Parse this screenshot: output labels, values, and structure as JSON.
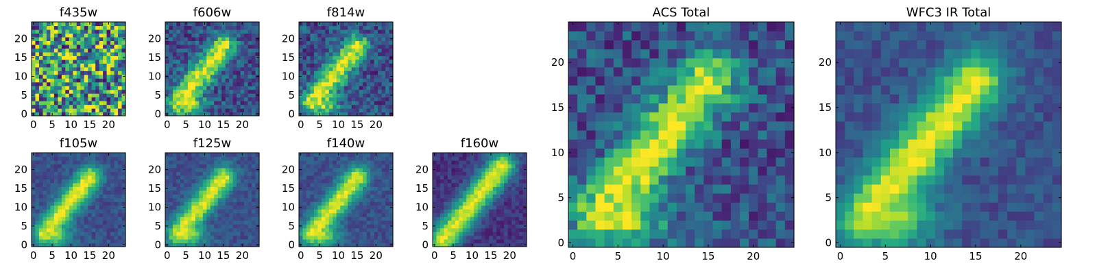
{
  "chart_data": [
    {
      "type": "heatmap",
      "title": "f435w",
      "xticks": [
        "0",
        "5",
        "10",
        "15",
        "20"
      ],
      "yticks": [
        "0",
        "5",
        "10",
        "15",
        "20"
      ],
      "xlim": [
        -0.5,
        24.5
      ],
      "ylim": [
        -0.5,
        24.5
      ],
      "grid": false,
      "colormap": "viridis",
      "structure": "noise"
    },
    {
      "type": "heatmap",
      "title": "f606w",
      "xticks": [
        "0",
        "5",
        "10",
        "15",
        "20"
      ],
      "yticks": [
        "0",
        "5",
        "10",
        "15",
        "20"
      ],
      "xlim": [
        -0.5,
        24.5
      ],
      "ylim": [
        -0.5,
        24.5
      ],
      "grid": false,
      "colormap": "viridis",
      "structure": "diagonal-arc"
    },
    {
      "type": "heatmap",
      "title": "f814w",
      "xticks": [
        "0",
        "5",
        "10",
        "15",
        "20"
      ],
      "yticks": [
        "0",
        "5",
        "10",
        "15",
        "20"
      ],
      "xlim": [
        -0.5,
        24.5
      ],
      "ylim": [
        -0.5,
        24.5
      ],
      "grid": false,
      "colormap": "viridis",
      "structure": "diagonal-arc"
    },
    {
      "type": "heatmap",
      "title": "f105w",
      "xticks": [
        "0",
        "5",
        "10",
        "15",
        "20"
      ],
      "yticks": [
        "0",
        "5",
        "10",
        "15",
        "20"
      ],
      "xlim": [
        -0.5,
        24.5
      ],
      "ylim": [
        -0.5,
        24.5
      ],
      "grid": false,
      "colormap": "viridis",
      "structure": "diagonal-arc"
    },
    {
      "type": "heatmap",
      "title": "f125w",
      "xticks": [
        "0",
        "5",
        "10",
        "15",
        "20"
      ],
      "yticks": [
        "0",
        "5",
        "10",
        "15",
        "20"
      ],
      "xlim": [
        -0.5,
        24.5
      ],
      "ylim": [
        -0.5,
        24.5
      ],
      "grid": false,
      "colormap": "viridis",
      "structure": "diagonal-arc"
    },
    {
      "type": "heatmap",
      "title": "f140w",
      "xticks": [
        "0",
        "5",
        "10",
        "15",
        "20"
      ],
      "yticks": [
        "0",
        "5",
        "10",
        "15",
        "20"
      ],
      "xlim": [
        -0.5,
        24.5
      ],
      "ylim": [
        -0.5,
        24.5
      ],
      "grid": false,
      "colormap": "viridis",
      "structure": "diagonal-arc"
    },
    {
      "type": "heatmap",
      "title": "f160w",
      "xticks": [
        "0",
        "5",
        "10",
        "15",
        "20"
      ],
      "yticks": [
        "0",
        "5",
        "10",
        "15",
        "20"
      ],
      "xlim": [
        -0.5,
        24.5
      ],
      "ylim": [
        -0.5,
        24.5
      ],
      "grid": false,
      "colormap": "viridis",
      "structure": "diagonal-band"
    },
    {
      "type": "heatmap",
      "title": "ACS Total",
      "xticks": [
        "0",
        "5",
        "10",
        "15",
        "20"
      ],
      "yticks": [
        "0",
        "5",
        "10",
        "15",
        "20"
      ],
      "xlim": [
        -0.5,
        24.5
      ],
      "ylim": [
        -0.5,
        24.5
      ],
      "grid": false,
      "colormap": "viridis",
      "structure": "diagonal-arc"
    },
    {
      "type": "heatmap",
      "title": "WFC3 IR Total",
      "xticks": [
        "0",
        "5",
        "10",
        "15",
        "20"
      ],
      "yticks": [
        "0",
        "5",
        "10",
        "15",
        "20"
      ],
      "xlim": [
        -0.5,
        24.5
      ],
      "ylim": [
        -0.5,
        24.5
      ],
      "grid": false,
      "colormap": "viridis",
      "structure": "diagonal-arc"
    }
  ]
}
